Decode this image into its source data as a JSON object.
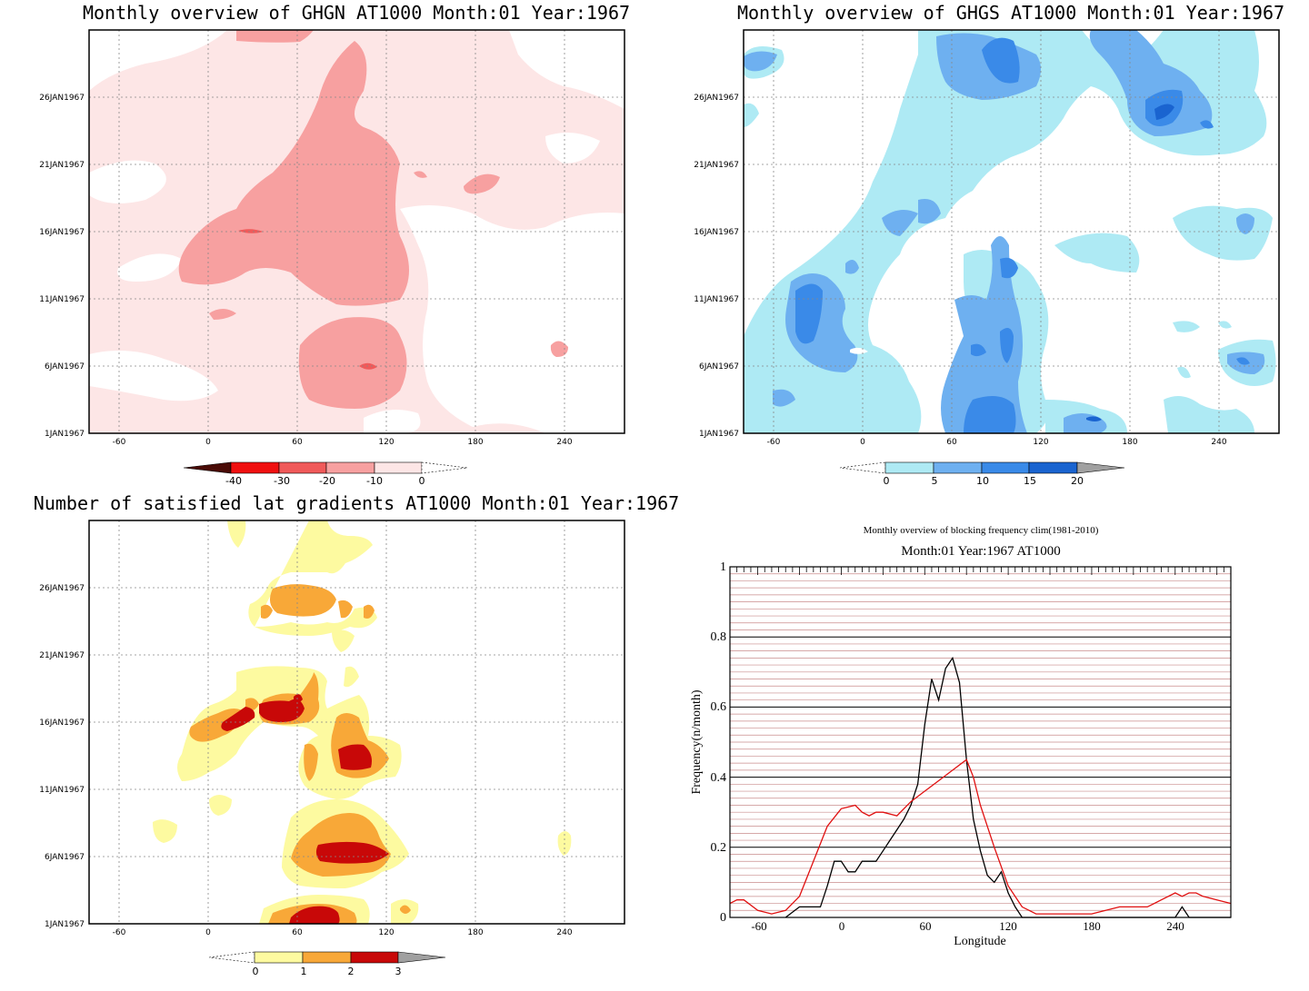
{
  "chart_data": [
    {
      "type": "heatmap",
      "title": "Monthly overview of GHGN AT1000 Month:01 Year:1967",
      "x_ticks": [
        "-60",
        "0",
        "60",
        "120",
        "180",
        "240"
      ],
      "y_ticks": [
        "1JAN1967",
        "6JAN1967",
        "11JAN1967",
        "16JAN1967",
        "21JAN1967",
        "26JAN1967"
      ],
      "colorbar": {
        "labels": [
          "-40",
          "-30",
          "-20",
          "-10",
          "0"
        ],
        "colors": [
          "#4a0b06",
          "#f01010",
          "#f05a5a",
          "#f7a0a0",
          "#fde6e6"
        ]
      }
    },
    {
      "type": "heatmap",
      "title": "Monthly overview of GHGS AT1000 Month:01 Year:1967",
      "x_ticks": [
        "-60",
        "0",
        "60",
        "120",
        "180",
        "240"
      ],
      "y_ticks": [
        "1JAN1967",
        "6JAN1967",
        "11JAN1967",
        "16JAN1967",
        "21JAN1967",
        "26JAN1967"
      ],
      "colorbar": {
        "labels": [
          "0",
          "5",
          "10",
          "15",
          "20"
        ],
        "colors": [
          "#aeeaf4",
          "#6eb0f0",
          "#3a8ae8",
          "#1a64d0",
          "#a0a0a0"
        ]
      }
    },
    {
      "type": "heatmap",
      "title": "Number of satisfied lat gradients AT1000 Month:01 Year:1967",
      "x_ticks": [
        "-60",
        "0",
        "60",
        "120",
        "180",
        "240"
      ],
      "y_ticks": [
        "1JAN1967",
        "6JAN1967",
        "11JAN1967",
        "16JAN1967",
        "21JAN1967",
        "26JAN1967"
      ],
      "colorbar": {
        "labels": [
          "0",
          "1",
          "2",
          "3"
        ],
        "colors": [
          "#fdfaa0",
          "#f8a838",
          "#c80808",
          "#a0a0a0"
        ]
      }
    },
    {
      "type": "line",
      "title": "Monthly overview of blocking frequency clim(1981-2010)",
      "subtitle": "Month:01 Year:1967  AT1000",
      "xlabel": "Longitude",
      "ylabel": "Frequency(n/month)",
      "xlim": [
        -80,
        280
      ],
      "ylim": [
        0,
        1
      ],
      "x_ticks": [
        "-60",
        "0",
        "60",
        "120",
        "180",
        "240"
      ],
      "y_ticks": [
        "0",
        "0.2",
        "0.4",
        "0.6",
        "0.8",
        "1"
      ],
      "series": [
        {
          "color": "#000000",
          "x": [
            -40,
            -30,
            -20,
            -15,
            -10,
            -5,
            0,
            5,
            10,
            15,
            20,
            25,
            30,
            35,
            40,
            45,
            50,
            55,
            60,
            65,
            70,
            75,
            80,
            85,
            90,
            95,
            100,
            105,
            110,
            115,
            120,
            125,
            130,
            135,
            140,
            150,
            160,
            170,
            180,
            190,
            200,
            210,
            220,
            230,
            240,
            245,
            250,
            260,
            270,
            280
          ],
          "y": [
            0,
            0.03,
            0.03,
            0.03,
            0.09,
            0.16,
            0.16,
            0.13,
            0.13,
            0.16,
            0.16,
            0.16,
            0.19,
            0.22,
            0.25,
            0.28,
            0.32,
            0.38,
            0.55,
            0.68,
            0.62,
            0.71,
            0.74,
            0.67,
            0.45,
            0.28,
            0.19,
            0.12,
            0.1,
            0.13,
            0.07,
            0.03,
            0,
            0,
            0,
            0,
            0,
            0,
            0,
            0,
            0,
            0,
            0,
            0,
            0,
            0.03,
            0,
            0,
            0,
            0
          ]
        },
        {
          "color": "#e01010",
          "x": [
            -80,
            -75,
            -70,
            -60,
            -50,
            -40,
            -30,
            -20,
            -10,
            0,
            10,
            15,
            20,
            25,
            30,
            40,
            50,
            60,
            70,
            80,
            90,
            95,
            100,
            110,
            120,
            130,
            140,
            150,
            160,
            170,
            180,
            190,
            200,
            210,
            220,
            230,
            240,
            245,
            250,
            255,
            260,
            270,
            280
          ],
          "y": [
            0.04,
            0.05,
            0.05,
            0.02,
            0.01,
            0.02,
            0.06,
            0.16,
            0.26,
            0.31,
            0.32,
            0.3,
            0.29,
            0.3,
            0.3,
            0.29,
            0.33,
            0.36,
            0.39,
            0.42,
            0.45,
            0.4,
            0.32,
            0.2,
            0.09,
            0.03,
            0.01,
            0.01,
            0.01,
            0.01,
            0.01,
            0.02,
            0.03,
            0.03,
            0.03,
            0.05,
            0.07,
            0.06,
            0.07,
            0.07,
            0.06,
            0.05,
            0.04
          ]
        }
      ]
    }
  ]
}
